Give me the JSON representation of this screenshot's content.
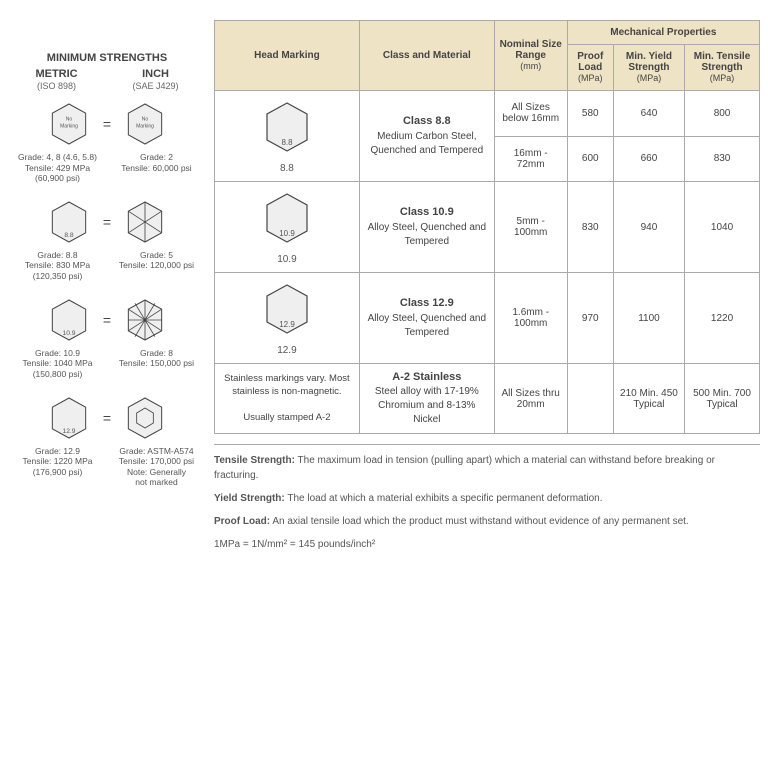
{
  "left": {
    "title": "MINIMUM STRENGTHS",
    "metric_h": "METRIC",
    "metric_s": "(ISO 898)",
    "inch_h": "INCH",
    "inch_s": "(SAE J429)",
    "rows": [
      {
        "ml": "No\nMarking",
        "il": "No\nMarking",
        "mt": "Grade: 4, 8 (4.6, 5.8)\nTensile: 429 MPa\n(60,900 psi)",
        "it": "Grade: 2\nTensile: 60,000 psi"
      },
      {
        "ml": "8.8",
        "il": "",
        "mt": "Grade: 8.8\nTensile: 830 MPa\n(120,350 psi)",
        "it": "Grade: 5\nTensile: 120,000 psi",
        "ilines": 3
      },
      {
        "ml": "10.9",
        "il": "",
        "mt": "Grade: 10.9\nTensile: 1040 MPa\n(150,800 psi)",
        "it": "Grade: 8\nTensile: 150,000 psi",
        "ilines": 6
      },
      {
        "ml": "12.9",
        "il": "",
        "mt": "Grade: 12.9\nTensile: 1220 MPa\n(176,900 psi)",
        "it": "Grade: ASTM-A574\nTensile: 170,000 psi\nNote: Generally\nnot marked",
        "ismall": true
      }
    ]
  },
  "table": {
    "h_mark": "Head Marking",
    "h_cm": "Class and Material",
    "h_nom": "Nominal Size Range",
    "h_nom_u": "(mm)",
    "h_mech": "Mechanical Properties",
    "h_proof": "Proof Load",
    "h_yield": "Min. Yield Strength",
    "h_tens": "Min. Tensile Strength",
    "h_u": "(MPa)",
    "rows": [
      {
        "mark": "8.8",
        "cm_t": "Class 8.8",
        "cm_d": "Medium Carbon Steel, Quenched and Tempered",
        "sz1": "All Sizes below 16mm",
        "p1": "580",
        "y1": "640",
        "t1": "800",
        "sz2": "16mm - 72mm",
        "p2": "600",
        "y2": "660",
        "t2": "830",
        "split": true
      },
      {
        "mark": "10.9",
        "cm_t": "Class 10.9",
        "cm_d": "Alloy Steel, Quenched and Tempered",
        "sz1": "5mm - 100mm",
        "p1": "830",
        "y1": "940",
        "t1": "1040"
      },
      {
        "mark": "12.9",
        "cm_t": "Class 12.9",
        "cm_d": "Alloy Steel, Quenched and Tempered",
        "sz1": "1.6mm - 100mm",
        "p1": "970",
        "y1": "1100",
        "t1": "1220"
      },
      {
        "marktxt": "Stainless markings vary. Most stainless is non-magnetic.\n\nUsually stamped A-2",
        "cm_t": "A-2 Stainless",
        "cm_d": "Steel alloy with 17-19% Chromium and 8-13% Nickel",
        "sz1": "All Sizes thru 20mm",
        "p1": "",
        "y1": "210 Min. 450 Typical",
        "t1": "500 Min. 700 Typical"
      }
    ]
  },
  "defs": {
    "d1b": "Tensile Strength:",
    "d1": " The maximum load in tension (pulling apart) which a material can withstand before breaking or fracturing.",
    "d2b": "Yield Strength:",
    "d2": " The load at which a material exhibits a specific permanent deformation.",
    "d3b": "Proof Load:",
    "d3": " An axial tensile load which the product must withstand without evidence of any permanent set.",
    "d4": "1MPa = 1N/mm² = 145 pounds/inch²"
  },
  "style": {
    "hex_fill": "#efefef",
    "hex_stroke": "#444"
  }
}
